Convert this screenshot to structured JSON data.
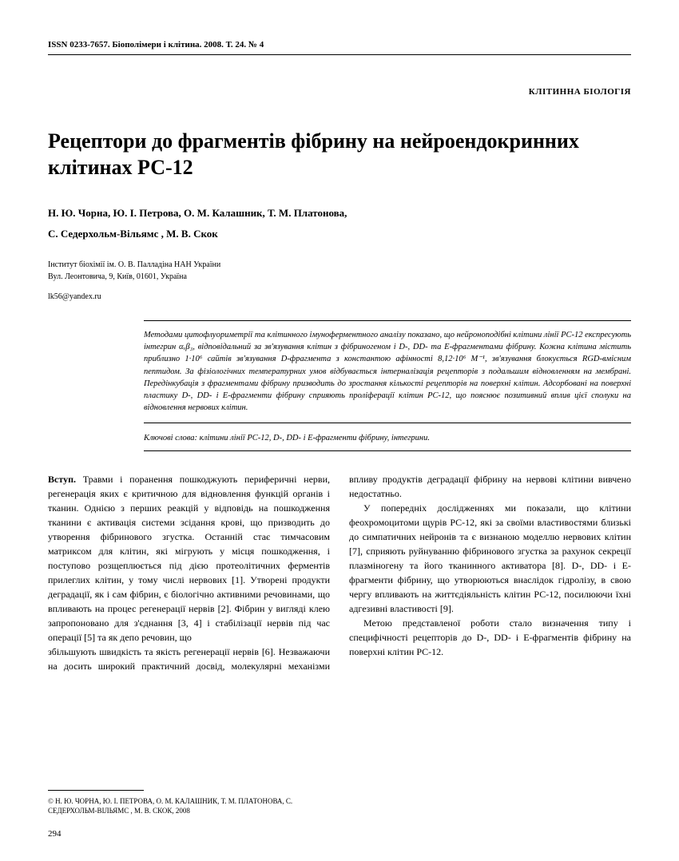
{
  "header": {
    "issn_line": "ISSN 0233-7657. Біополімери і клітина. 2008. Т. 24. № 4"
  },
  "section_label": "КЛІТИННА БІОЛОГІЯ",
  "title": "Рецептори до фрагментів фібрину на нейроендокринних клітинах РС-12",
  "authors": "Н. Ю. Чорна, Ю. І. Петрова, О. М. Калашник, Т. М. Платонова,\nС. Седерхольм-Вільямс , М. В. Скок",
  "affiliation": {
    "line1": "Інститут біохімії ім. О. В. Палладіна НАН України",
    "line2": "Вул. Леонтовича, 9, Київ, 01601, Україна"
  },
  "email": "lk56@yandex.ru",
  "abstract": "Методами цитофлуориметрії та клітинного імуноферментного аналізу показано, що нейроноподібні клітини лінії РС-12 експресують інтегрин αᵥβ₃, відповідальний за зв'язування клітин з фібриногеном і D-, DD- та Е-фрагментами фібрину. Кожна клітина містить приблизно 1·10⁶ сайтів зв'язування D-фрагмента з константою афінності 8,12·10⁶ М⁻¹, зв'язування блокується RGD-вмісним пептидом. За фізіологічних температурних умов відбувається інтерналізація рецепторів з подальшим відновленням на мембрані. Передінкубація з фрагментами фібрину призводить до зростання кількості рецепторів на поверхні клітин. Адсорбовані на поверхні пластику D-, DD- і Е-фрагменти фібрину сприяють проліферації клітин РС-12, що пояснює позитивний вплив цієї сполуки на відновлення нервових клітин.",
  "keywords": "Ключові слова: клітини лінії РС-12, D-, DD- і Е-фрагменти фібрину, інтегрини.",
  "body": {
    "intro_label": "Вступ.",
    "p1": " Травми і поранення пошкоджують периферичні нерви, регенерація яких є критичною для відновлення функцій органів і тканин. Однією з перших реакцій у відповідь на пошкодження тканини є активація системи зсідання крові, що призводить до утворення фібринового згустка. Останній стає тимчасовим матриксом для клітин, які мігрують у місця пошкодження, і поступово розщеплюється під дією протеолітичних ферментів прилеглих клітин, у тому числі нервових [1]. Утворені продукти деградації, як і сам фібрин, є біологічно активними речовинами, що впливають на процес регенерації нервів [2]. Фібрин у вигляді клею запропоновано для з'єднання [3, 4] і стабілізації нервів під час операції [5] та як депо речовин, що",
    "p2": "збільшують швидкість та якість регенерації нервів [6]. Незважаючи на досить широкий практичний досвід, молекулярні механізми впливу продуктів деградації фібрину на нервові клітини вивчено недостатньо.",
    "p3": "У попередніх дослідженнях ми показали, що клітини феохромоцитоми щурів РС-12, які за своїми властивостями близькі до симпатичних нейронів та є визнаною моделлю нервових клітин [7], сприяють руйнуванню фібринового згустка за рахунок секреції плазміногену та його тканинного активатора [8]. D-, DD- і Е-фрагменти фібрину, що утворюються внаслідок гідролізу, в свою чергу впливають на життєдіяльність клітин РС-12, посилюючи їхні адгезивні властивості [9].",
    "p4": "Метою представленої роботи стало визначення типу і специфічності рецепторів до D-, DD- і Е-фрагментів фібрину на поверхні клітин РС-12."
  },
  "copyright": "© Н. Ю. ЧОРНА, Ю. І. ПЕТРОВА, О. М. КАЛАШНИК, Т. М. ПЛАТОНОВА, С. СЕДЕРХОЛЬМ-ВІЛЬЯМС , М. В. СКОК, 2008",
  "page_number": "294"
}
